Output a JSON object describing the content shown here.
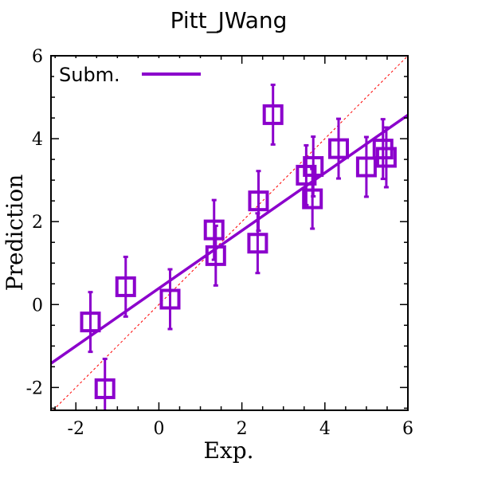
{
  "chart_data": {
    "type": "scatter",
    "title": "Pitt_JWang",
    "xlabel": "Exp.",
    "ylabel": "Prediction",
    "xlim": [
      -2.6,
      6
    ],
    "ylim": [
      -2.55,
      6
    ],
    "xticks": [
      -2,
      0,
      2,
      4,
      6
    ],
    "yticks": [
      -2,
      0,
      2,
      4,
      6
    ],
    "xtick_labels": [
      "-2",
      "0",
      "2",
      "4",
      "6"
    ],
    "ytick_labels": [
      "-2",
      "0",
      "2",
      "4",
      "6"
    ],
    "grid": false,
    "legend": {
      "position": "top-left",
      "entries": [
        {
          "label": "Subm.",
          "marker": "line"
        }
      ]
    },
    "color": "#8b00cc",
    "diagonal_color": "#ff0000",
    "series": [
      {
        "name": "Subm.",
        "points": [
          {
            "x": -1.65,
            "y": -0.42,
            "err": 0.72
          },
          {
            "x": -1.3,
            "y": -2.03,
            "err": 0.72
          },
          {
            "x": -0.8,
            "y": 0.43,
            "err": 0.72
          },
          {
            "x": 0.27,
            "y": 0.13,
            "err": 0.72
          },
          {
            "x": 1.33,
            "y": 1.8,
            "err": 0.72
          },
          {
            "x": 1.37,
            "y": 1.18,
            "err": 0.72
          },
          {
            "x": 2.4,
            "y": 2.5,
            "err": 0.72
          },
          {
            "x": 2.38,
            "y": 1.48,
            "err": 0.72
          },
          {
            "x": 2.75,
            "y": 4.58,
            "err": 0.72
          },
          {
            "x": 3.55,
            "y": 3.12,
            "err": 0.72
          },
          {
            "x": 3.72,
            "y": 3.33,
            "err": 0.72
          },
          {
            "x": 3.7,
            "y": 2.55,
            "err": 0.72
          },
          {
            "x": 4.33,
            "y": 3.76,
            "err": 0.72
          },
          {
            "x": 5.0,
            "y": 3.32,
            "err": 0.72
          },
          {
            "x": 5.4,
            "y": 3.75,
            "err": 0.72
          },
          {
            "x": 5.48,
            "y": 3.55,
            "err": 0.72
          }
        ]
      }
    ],
    "fit_line": {
      "x": [
        -2.6,
        6
      ],
      "y": [
        -1.42,
        4.57
      ]
    }
  }
}
